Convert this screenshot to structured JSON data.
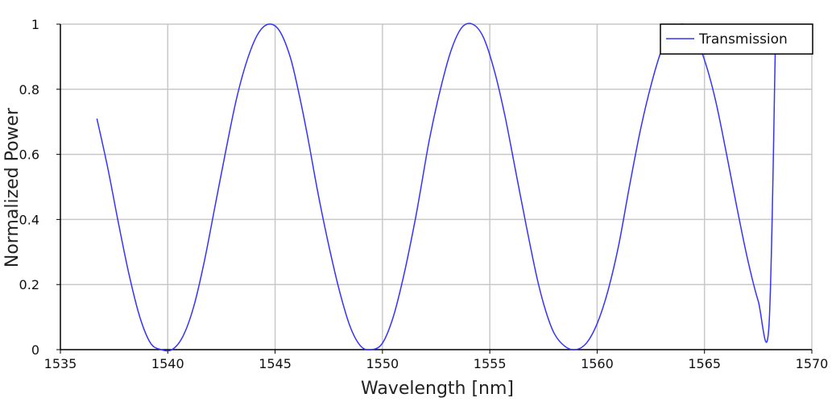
{
  "chart_data": {
    "type": "line",
    "xlabel": "Wavelength [nm]",
    "ylabel": "Normalized Power",
    "xlim": [
      1535,
      1570
    ],
    "ylim": [
      0,
      1
    ],
    "x_ticks": [
      "1535",
      "1540",
      "1545",
      "1550",
      "1555",
      "1560",
      "1565",
      "1570"
    ],
    "y_ticks": [
      "0",
      "0.2",
      "0.4",
      "0.6",
      "0.8",
      "1"
    ],
    "grid": true,
    "legend_position": "top-right",
    "series": [
      {
        "name": "Transmission",
        "color": "#3333ff",
        "x": [
          1536.7,
          1537.2,
          1537.7,
          1538.2,
          1538.7,
          1539.2,
          1539.7,
          1540.2,
          1540.7,
          1541.2,
          1541.7,
          1542.2,
          1542.7,
          1543.2,
          1543.7,
          1544.2,
          1544.7,
          1545.2,
          1545.7,
          1546.1,
          1546.5,
          1547.0,
          1547.5,
          1548.0,
          1548.5,
          1549.0,
          1549.5,
          1550.0,
          1550.5,
          1551.0,
          1551.5,
          1551.8,
          1552.2,
          1552.7,
          1553.2,
          1553.7,
          1554.2,
          1554.7,
          1555.2,
          1555.7,
          1556.2,
          1556.7,
          1557.2,
          1557.6,
          1558.0,
          1558.5,
          1559.0,
          1559.5,
          1560.0,
          1560.5,
          1561.0,
          1561.5,
          1562.0,
          1562.5,
          1563.0,
          1563.5,
          1564.0,
          1564.5,
          1565.0,
          1565.5,
          1566.0,
          1566.5,
          1567.0,
          1567.5,
          1568.0,
          1568.3
        ],
        "values": [
          0.71,
          0.56,
          0.39,
          0.23,
          0.1,
          0.02,
          0.0,
          0.0,
          0.04,
          0.13,
          0.27,
          0.44,
          0.61,
          0.77,
          0.89,
          0.97,
          1.0,
          0.98,
          0.9,
          0.79,
          0.66,
          0.48,
          0.32,
          0.18,
          0.07,
          0.01,
          0.0,
          0.02,
          0.1,
          0.23,
          0.39,
          0.5,
          0.65,
          0.8,
          0.92,
          0.99,
          1.0,
          0.96,
          0.86,
          0.72,
          0.55,
          0.38,
          0.22,
          0.12,
          0.05,
          0.01,
          0.0,
          0.02,
          0.08,
          0.18,
          0.32,
          0.5,
          0.67,
          0.81,
          0.92,
          0.98,
          1.0,
          0.97,
          0.89,
          0.77,
          0.61,
          0.44,
          0.28,
          0.15,
          0.07,
          0.93
        ]
      }
    ]
  }
}
